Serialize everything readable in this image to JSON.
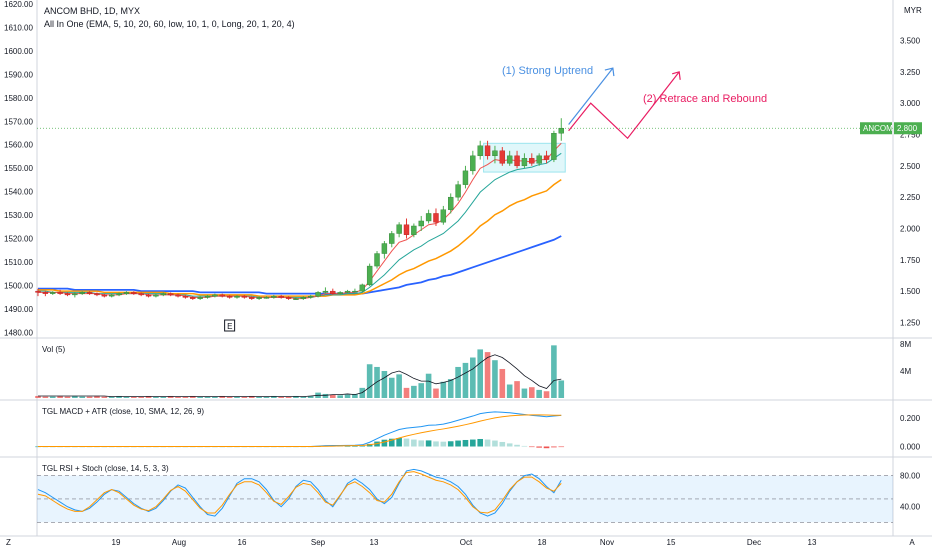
{
  "header": {
    "symbol_line": "ANCOM BHD, 1D, MYX",
    "indicator_line": "All In One (EMA, 5, 10, 20, 60, low, 10, 1, 0, Long, 20, 1, 20, 4)"
  },
  "colors": {
    "up": "#26a69a",
    "down": "#ef5350",
    "candle_up": "#4caf50",
    "candle_down": "#e53935",
    "ema5": "#ef5350",
    "ema10": "#26a69a",
    "ema20": "#ff9800",
    "ema60": "#2962ff",
    "uptrend_arrow": "#4a90e2",
    "rebound_arrow": "#e91e63",
    "price_badge": "#4caf50"
  },
  "chart_data": {
    "type": "candlestick",
    "x_labels": [
      "19",
      "Aug",
      "16",
      "Sep",
      "13",
      "Oct",
      "18",
      "Nov",
      "15",
      "Dec",
      "13",
      "A"
    ],
    "left_axis": {
      "ticks": [
        "1620.00",
        "1610.00",
        "1600.00",
        "1590.00",
        "1580.00",
        "1570.00",
        "1560.00",
        "1550.00",
        "1540.00",
        "1530.00",
        "1520.00",
        "1510.00",
        "1500.00",
        "1490.00",
        "1480.00"
      ]
    },
    "right_axis": {
      "unit": "MYR",
      "ticks": [
        "3.500",
        "3.250",
        "3.000",
        "2.750",
        "2.500",
        "2.250",
        "2.000",
        "1.750",
        "1.500",
        "1.250"
      ],
      "range": [
        1.15,
        3.6
      ]
    },
    "candles": [
      [
        1.5,
        1.52,
        1.46,
        1.49
      ],
      [
        1.49,
        1.5,
        1.46,
        1.48
      ],
      [
        1.48,
        1.5,
        1.47,
        1.49
      ],
      [
        1.49,
        1.51,
        1.47,
        1.48
      ],
      [
        1.48,
        1.49,
        1.46,
        1.47
      ],
      [
        1.47,
        1.49,
        1.45,
        1.48
      ],
      [
        1.48,
        1.5,
        1.47,
        1.49
      ],
      [
        1.49,
        1.5,
        1.47,
        1.48
      ],
      [
        1.48,
        1.49,
        1.46,
        1.47
      ],
      [
        1.47,
        1.48,
        1.45,
        1.46
      ],
      [
        1.46,
        1.48,
        1.45,
        1.47
      ],
      [
        1.47,
        1.49,
        1.46,
        1.48
      ],
      [
        1.48,
        1.5,
        1.47,
        1.49
      ],
      [
        1.49,
        1.5,
        1.47,
        1.48
      ],
      [
        1.48,
        1.49,
        1.46,
        1.47
      ],
      [
        1.47,
        1.48,
        1.45,
        1.46
      ],
      [
        1.46,
        1.48,
        1.45,
        1.47
      ],
      [
        1.47,
        1.49,
        1.46,
        1.48
      ],
      [
        1.48,
        1.49,
        1.46,
        1.47
      ],
      [
        1.47,
        1.48,
        1.45,
        1.46
      ],
      [
        1.46,
        1.47,
        1.44,
        1.45
      ],
      [
        1.45,
        1.46,
        1.43,
        1.44
      ],
      [
        1.44,
        1.46,
        1.43,
        1.45
      ],
      [
        1.45,
        1.47,
        1.44,
        1.46
      ],
      [
        1.46,
        1.48,
        1.45,
        1.47
      ],
      [
        1.47,
        1.48,
        1.45,
        1.46
      ],
      [
        1.46,
        1.47,
        1.44,
        1.45
      ],
      [
        1.45,
        1.47,
        1.44,
        1.46
      ],
      [
        1.46,
        1.47,
        1.44,
        1.45
      ],
      [
        1.45,
        1.46,
        1.43,
        1.44
      ],
      [
        1.44,
        1.46,
        1.43,
        1.45
      ],
      [
        1.45,
        1.46,
        1.44,
        1.45
      ],
      [
        1.45,
        1.47,
        1.44,
        1.46
      ],
      [
        1.46,
        1.47,
        1.44,
        1.45
      ],
      [
        1.45,
        1.46,
        1.43,
        1.44
      ],
      [
        1.44,
        1.45,
        1.43,
        1.44
      ],
      [
        1.44,
        1.46,
        1.43,
        1.45
      ],
      [
        1.45,
        1.47,
        1.44,
        1.46
      ],
      [
        1.46,
        1.5,
        1.45,
        1.49
      ],
      [
        1.49,
        1.53,
        1.48,
        1.5
      ],
      [
        1.5,
        1.52,
        1.47,
        1.48
      ],
      [
        1.48,
        1.5,
        1.47,
        1.49
      ],
      [
        1.49,
        1.51,
        1.48,
        1.5
      ],
      [
        1.5,
        1.52,
        1.49,
        1.5
      ],
      [
        1.5,
        1.56,
        1.49,
        1.55
      ],
      [
        1.55,
        1.72,
        1.54,
        1.7
      ],
      [
        1.7,
        1.82,
        1.68,
        1.8
      ],
      [
        1.8,
        1.9,
        1.76,
        1.88
      ],
      [
        1.88,
        1.98,
        1.85,
        1.96
      ],
      [
        1.96,
        2.05,
        1.93,
        2.03
      ],
      [
        2.03,
        2.08,
        1.92,
        1.95
      ],
      [
        1.95,
        2.04,
        1.93,
        2.02
      ],
      [
        2.02,
        2.1,
        1.98,
        2.06
      ],
      [
        2.06,
        2.15,
        2.04,
        2.12
      ],
      [
        2.12,
        2.16,
        2.02,
        2.05
      ],
      [
        2.05,
        2.18,
        2.03,
        2.15
      ],
      [
        2.15,
        2.28,
        2.12,
        2.25
      ],
      [
        2.25,
        2.38,
        2.22,
        2.35
      ],
      [
        2.35,
        2.5,
        2.32,
        2.46
      ],
      [
        2.46,
        2.62,
        2.43,
        2.58
      ],
      [
        2.58,
        2.7,
        2.55,
        2.66
      ],
      [
        2.66,
        2.7,
        2.55,
        2.58
      ],
      [
        2.58,
        2.66,
        2.52,
        2.62
      ],
      [
        2.62,
        2.65,
        2.5,
        2.52
      ],
      [
        2.52,
        2.62,
        2.5,
        2.58
      ],
      [
        2.58,
        2.62,
        2.48,
        2.5
      ],
      [
        2.5,
        2.6,
        2.48,
        2.56
      ],
      [
        2.56,
        2.6,
        2.5,
        2.52
      ],
      [
        2.52,
        2.6,
        2.5,
        2.58
      ],
      [
        2.58,
        2.62,
        2.52,
        2.55
      ],
      [
        2.55,
        2.78,
        2.53,
        2.76
      ],
      [
        2.76,
        2.88,
        2.7,
        2.8
      ]
    ],
    "ema5": [
      1.49,
      1.49,
      1.49,
      1.49,
      1.48,
      1.48,
      1.48,
      1.48,
      1.48,
      1.47,
      1.47,
      1.47,
      1.48,
      1.48,
      1.48,
      1.47,
      1.47,
      1.47,
      1.47,
      1.47,
      1.46,
      1.45,
      1.45,
      1.45,
      1.46,
      1.46,
      1.46,
      1.46,
      1.46,
      1.45,
      1.45,
      1.45,
      1.45,
      1.45,
      1.45,
      1.44,
      1.44,
      1.45,
      1.46,
      1.48,
      1.48,
      1.48,
      1.49,
      1.49,
      1.51,
      1.58,
      1.66,
      1.74,
      1.82,
      1.89,
      1.91,
      1.95,
      1.99,
      2.03,
      2.04,
      2.07,
      2.13,
      2.2,
      2.29,
      2.39,
      2.48,
      2.51,
      2.55,
      2.54,
      2.55,
      2.54,
      2.54,
      2.53,
      2.55,
      2.55,
      2.62,
      2.68
    ],
    "ema10": [
      1.5,
      1.5,
      1.49,
      1.49,
      1.49,
      1.49,
      1.49,
      1.49,
      1.48,
      1.48,
      1.48,
      1.48,
      1.48,
      1.48,
      1.48,
      1.48,
      1.48,
      1.48,
      1.47,
      1.47,
      1.47,
      1.46,
      1.46,
      1.46,
      1.46,
      1.46,
      1.46,
      1.46,
      1.46,
      1.46,
      1.45,
      1.45,
      1.45,
      1.45,
      1.45,
      1.45,
      1.45,
      1.45,
      1.46,
      1.47,
      1.47,
      1.47,
      1.48,
      1.48,
      1.49,
      1.53,
      1.58,
      1.63,
      1.69,
      1.75,
      1.79,
      1.83,
      1.86,
      1.9,
      1.93,
      1.96,
      2.01,
      2.06,
      2.13,
      2.21,
      2.29,
      2.34,
      2.39,
      2.42,
      2.45,
      2.47,
      2.48,
      2.49,
      2.51,
      2.52,
      2.56,
      2.6
    ],
    "ema20": [
      1.51,
      1.51,
      1.51,
      1.5,
      1.5,
      1.5,
      1.5,
      1.5,
      1.5,
      1.49,
      1.49,
      1.49,
      1.49,
      1.49,
      1.49,
      1.49,
      1.49,
      1.49,
      1.48,
      1.48,
      1.48,
      1.48,
      1.47,
      1.47,
      1.47,
      1.47,
      1.47,
      1.47,
      1.47,
      1.47,
      1.46,
      1.46,
      1.46,
      1.46,
      1.46,
      1.46,
      1.46,
      1.46,
      1.46,
      1.46,
      1.47,
      1.47,
      1.47,
      1.47,
      1.48,
      1.5,
      1.53,
      1.56,
      1.59,
      1.63,
      1.66,
      1.68,
      1.71,
      1.74,
      1.76,
      1.79,
      1.82,
      1.86,
      1.91,
      1.96,
      2.02,
      2.06,
      2.11,
      2.14,
      2.18,
      2.21,
      2.23,
      2.26,
      2.28,
      2.3,
      2.35,
      2.39
    ],
    "ema60": [
      1.52,
      1.52,
      1.52,
      1.52,
      1.52,
      1.51,
      1.51,
      1.51,
      1.51,
      1.51,
      1.51,
      1.51,
      1.51,
      1.51,
      1.5,
      1.5,
      1.5,
      1.5,
      1.5,
      1.5,
      1.5,
      1.5,
      1.49,
      1.49,
      1.49,
      1.49,
      1.49,
      1.49,
      1.49,
      1.49,
      1.49,
      1.48,
      1.48,
      1.48,
      1.48,
      1.48,
      1.48,
      1.48,
      1.48,
      1.48,
      1.48,
      1.48,
      1.48,
      1.48,
      1.48,
      1.49,
      1.5,
      1.51,
      1.52,
      1.53,
      1.55,
      1.56,
      1.57,
      1.59,
      1.6,
      1.62,
      1.63,
      1.65,
      1.67,
      1.69,
      1.71,
      1.73,
      1.75,
      1.77,
      1.79,
      1.81,
      1.83,
      1.85,
      1.87,
      1.89,
      1.91,
      1.94
    ],
    "price_label": {
      "symbol": "ANCOM",
      "value": "2.800"
    },
    "consolidation_box": {
      "from_index": 61,
      "to_index": 71,
      "low": 2.45,
      "high": 2.68
    },
    "projection_uptrend": {
      "from": [
        72,
        2.83
      ],
      "to": [
        78,
        3.28
      ],
      "label": "(1) Strong Uptrend"
    },
    "projection_rebound": {
      "points": [
        [
          72,
          2.78
        ],
        [
          75,
          3.0
        ],
        [
          80,
          2.72
        ],
        [
          87,
          3.25
        ]
      ],
      "label": "(2) Retrace and Rebound"
    },
    "earnings_marker": {
      "index": 26,
      "label": "E"
    },
    "volume": {
      "title": "Vol (5)",
      "ticks": [
        "8M",
        "4M"
      ],
      "max": 8.0,
      "values": [
        0.3,
        0.2,
        0.2,
        0.3,
        0.2,
        0.3,
        0.2,
        0.2,
        0.3,
        0.2,
        0.2,
        0.3,
        0.2,
        0.2,
        0.2,
        0.3,
        0.2,
        0.2,
        0.3,
        0.2,
        0.2,
        0.3,
        0.2,
        0.2,
        0.2,
        0.3,
        0.2,
        0.2,
        0.2,
        0.3,
        0.2,
        0.2,
        0.3,
        0.2,
        0.2,
        0.3,
        0.2,
        0.3,
        0.8,
        0.6,
        0.5,
        0.4,
        0.5,
        0.6,
        1.5,
        5.0,
        4.6,
        4.0,
        3.0,
        3.5,
        1.5,
        1.8,
        2.2,
        3.6,
        1.4,
        2.4,
        2.8,
        4.6,
        5.2,
        6.0,
        7.2,
        6.8,
        5.6,
        4.3,
        2.0,
        2.5,
        1.4,
        1.6,
        1.2,
        1.0,
        7.8,
        2.6
      ],
      "ma": [
        0.3,
        0.3,
        0.3,
        0.3,
        0.3,
        0.3,
        0.3,
        0.3,
        0.3,
        0.3,
        0.2,
        0.2,
        0.2,
        0.2,
        0.2,
        0.2,
        0.2,
        0.2,
        0.2,
        0.2,
        0.2,
        0.2,
        0.2,
        0.2,
        0.2,
        0.2,
        0.2,
        0.2,
        0.2,
        0.2,
        0.2,
        0.2,
        0.2,
        0.2,
        0.2,
        0.2,
        0.2,
        0.3,
        0.4,
        0.4,
        0.5,
        0.5,
        0.6,
        0.5,
        0.8,
        1.6,
        2.4,
        3.0,
        3.7,
        4.0,
        3.5,
        2.9,
        2.5,
        2.5,
        2.1,
        2.3,
        2.6,
        3.1,
        3.7,
        4.3,
        5.2,
        6.0,
        6.4,
        6.0,
        5.2,
        4.3,
        3.3,
        2.6,
        1.8,
        1.4,
        2.6,
        2.8
      ]
    },
    "macd": {
      "title": "TGL MACD + ATR (close, 10, SMA, 12, 26, 9)",
      "ticks": [
        "0.200",
        "0.000"
      ],
      "range": [
        -0.06,
        0.3
      ],
      "macd_line": [
        0,
        0,
        0,
        0,
        0,
        0,
        0,
        0,
        0,
        0,
        0,
        0,
        0,
        0,
        0,
        0,
        0,
        0,
        0,
        0,
        0,
        0,
        0,
        0,
        0,
        0,
        0,
        0,
        0,
        0,
        0,
        0,
        0,
        0,
        0,
        0,
        0,
        0,
        0.003,
        0.006,
        0.007,
        0.007,
        0.008,
        0.009,
        0.012,
        0.03,
        0.055,
        0.08,
        0.1,
        0.12,
        0.13,
        0.135,
        0.14,
        0.15,
        0.152,
        0.158,
        0.17,
        0.185,
        0.2,
        0.215,
        0.232,
        0.24,
        0.244,
        0.242,
        0.238,
        0.232,
        0.226,
        0.22,
        0.215,
        0.21,
        0.215,
        0.22
      ],
      "signal_line": [
        0,
        0,
        0,
        0,
        0,
        0,
        0,
        0,
        0,
        0,
        0,
        0,
        0,
        0,
        0,
        0,
        0,
        0,
        0,
        0,
        0,
        0,
        0,
        0,
        0,
        0,
        0,
        0,
        0,
        0,
        0,
        0,
        0,
        0,
        0,
        0,
        0,
        0,
        0.001,
        0.002,
        0.003,
        0.004,
        0.005,
        0.006,
        0.007,
        0.012,
        0.02,
        0.032,
        0.045,
        0.06,
        0.074,
        0.086,
        0.097,
        0.107,
        0.116,
        0.124,
        0.133,
        0.143,
        0.154,
        0.166,
        0.179,
        0.191,
        0.202,
        0.21,
        0.216,
        0.22,
        0.222,
        0.223,
        0.223,
        0.222,
        0.221,
        0.221
      ],
      "histogram": [
        0,
        0,
        0,
        0,
        0,
        0,
        0,
        0,
        0,
        0,
        0,
        0,
        0,
        0,
        0,
        0,
        0,
        0,
        0,
        0,
        0,
        0,
        0,
        0,
        0,
        0,
        0,
        0,
        0,
        0,
        0,
        0,
        0,
        0,
        0,
        0,
        0,
        0,
        0.002,
        0.004,
        0.004,
        0.003,
        0.003,
        0.003,
        0.005,
        0.018,
        0.035,
        0.048,
        0.055,
        0.06,
        0.056,
        0.049,
        0.043,
        0.043,
        0.036,
        0.034,
        0.037,
        0.042,
        0.046,
        0.049,
        0.053,
        0.049,
        0.042,
        0.032,
        0.022,
        0.012,
        0.004,
        -0.003,
        -0.008,
        -0.012,
        -0.006,
        -0.001
      ]
    },
    "rsi": {
      "title": "TGL RSI + Stoch (close, 14, 5, 3, 3)",
      "ticks": [
        "80.00",
        "40.00"
      ],
      "range": [
        5,
        100
      ],
      "band": [
        20,
        80
      ],
      "mid": 50,
      "rsi_line": [
        62,
        58,
        52,
        46,
        40,
        36,
        34,
        38,
        46,
        56,
        62,
        60,
        52,
        44,
        38,
        34,
        38,
        48,
        60,
        68,
        64,
        52,
        40,
        30,
        28,
        38,
        54,
        70,
        76,
        76,
        72,
        62,
        48,
        40,
        50,
        66,
        74,
        72,
        62,
        48,
        40,
        54,
        70,
        76,
        70,
        62,
        50,
        44,
        52,
        70,
        86,
        88,
        86,
        82,
        78,
        76,
        72,
        66,
        56,
        42,
        32,
        28,
        32,
        44,
        60,
        72,
        80,
        82,
        76,
        66,
        58,
        74
      ],
      "stoch_line": [
        56,
        54,
        48,
        42,
        37,
        34,
        34,
        40,
        49,
        58,
        62,
        58,
        50,
        42,
        37,
        35,
        40,
        50,
        61,
        66,
        60,
        49,
        38,
        32,
        32,
        42,
        56,
        68,
        72,
        72,
        68,
        58,
        47,
        43,
        53,
        65,
        70,
        68,
        58,
        46,
        42,
        55,
        68,
        72,
        66,
        58,
        48,
        46,
        56,
        72,
        84,
        85,
        82,
        78,
        74,
        72,
        68,
        62,
        52,
        40,
        33,
        32,
        36,
        48,
        62,
        72,
        78,
        78,
        72,
        64,
        60,
        70
      ]
    }
  }
}
